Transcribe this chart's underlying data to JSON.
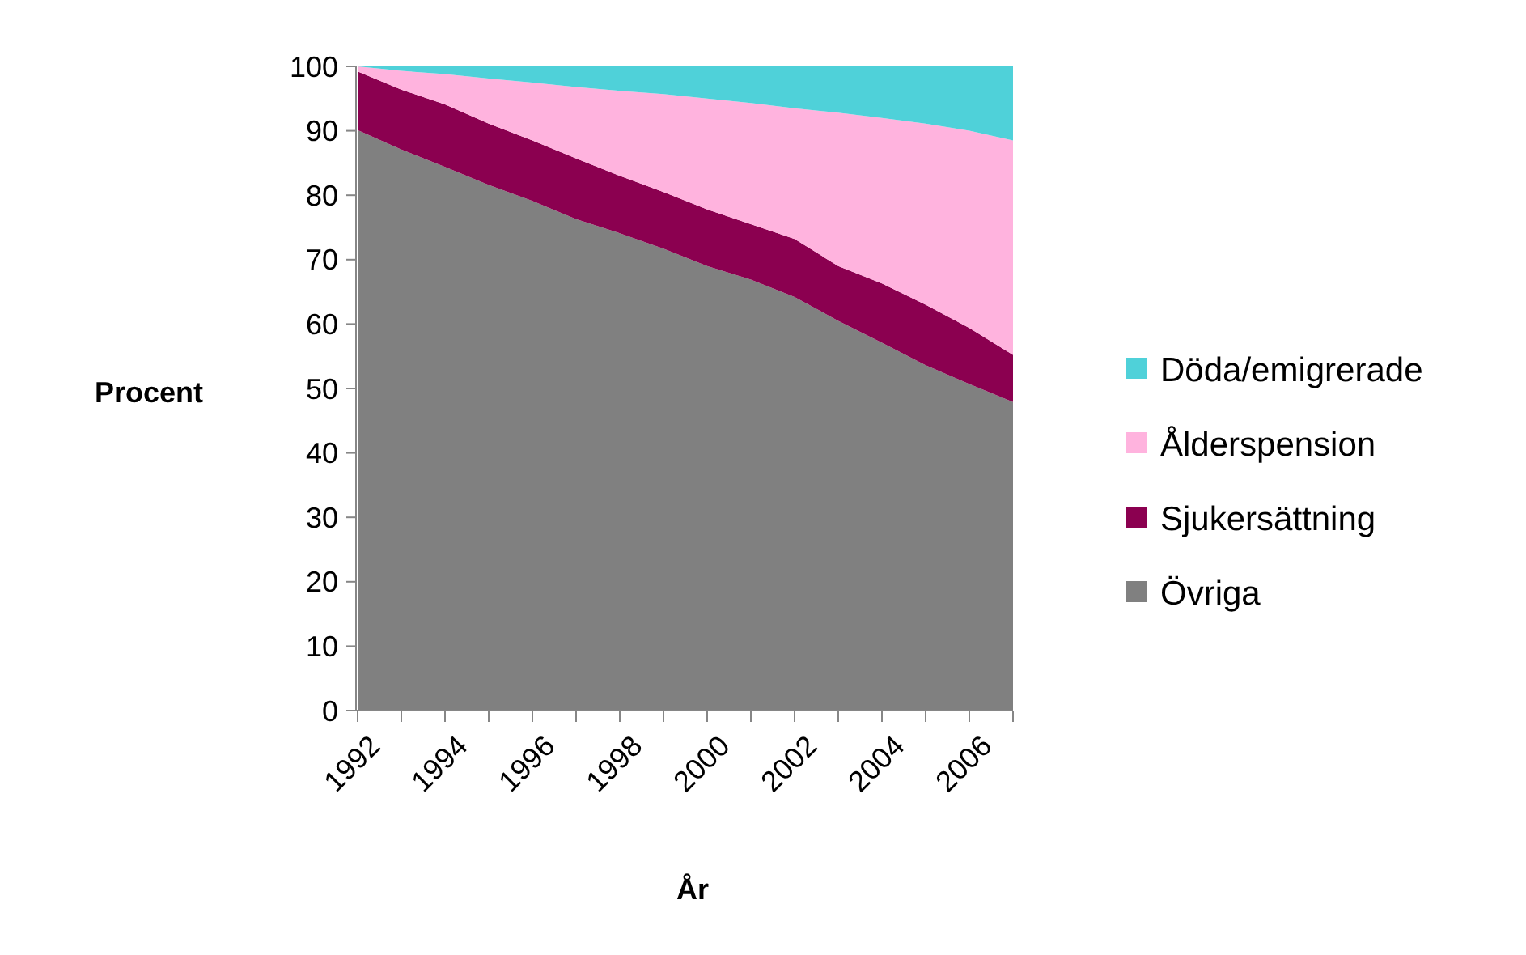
{
  "chart_data": {
    "type": "area",
    "stacked": true,
    "xlabel": "År",
    "ylabel": "Procent",
    "categories": [
      "1992",
      null,
      "1994",
      null,
      "1996",
      null,
      "1998",
      null,
      "2000",
      null,
      "2002",
      null,
      "2004",
      null,
      "2006",
      null
    ],
    "ylim": [
      0,
      100
    ],
    "yticks": [
      0,
      10,
      20,
      30,
      40,
      50,
      60,
      70,
      80,
      90,
      100
    ],
    "grid": false,
    "legend": "right",
    "series": [
      {
        "name": "Övriga",
        "color": "#808080",
        "values": [
          90.1,
          87.1,
          84.4,
          81.6,
          79.1,
          76.3,
          74.1,
          71.7,
          69.0,
          66.9,
          64.2,
          60.5,
          57.1,
          53.6,
          50.7,
          47.9
        ]
      },
      {
        "name": "Sjukersättning",
        "color": "#8b0050",
        "values": [
          9.1,
          9.3,
          9.7,
          9.5,
          9.4,
          9.4,
          8.9,
          8.8,
          8.8,
          8.6,
          9.0,
          8.5,
          9.2,
          9.4,
          8.7,
          7.3
        ]
      },
      {
        "name": "Ålderspension",
        "color": "#ffb3de",
        "values": [
          0.8,
          2.9,
          4.7,
          7.0,
          9.0,
          11.1,
          13.2,
          15.2,
          17.2,
          18.8,
          20.3,
          23.8,
          25.7,
          28.1,
          30.6,
          33.3
        ]
      },
      {
        "name": "Döda/emigrerade",
        "color": "#4fd1d9",
        "values": [
          0,
          0.7,
          1.2,
          1.9,
          2.5,
          3.2,
          3.8,
          4.3,
          5.0,
          5.7,
          6.5,
          7.2,
          8.0,
          8.9,
          10.0,
          11.5
        ]
      }
    ]
  }
}
